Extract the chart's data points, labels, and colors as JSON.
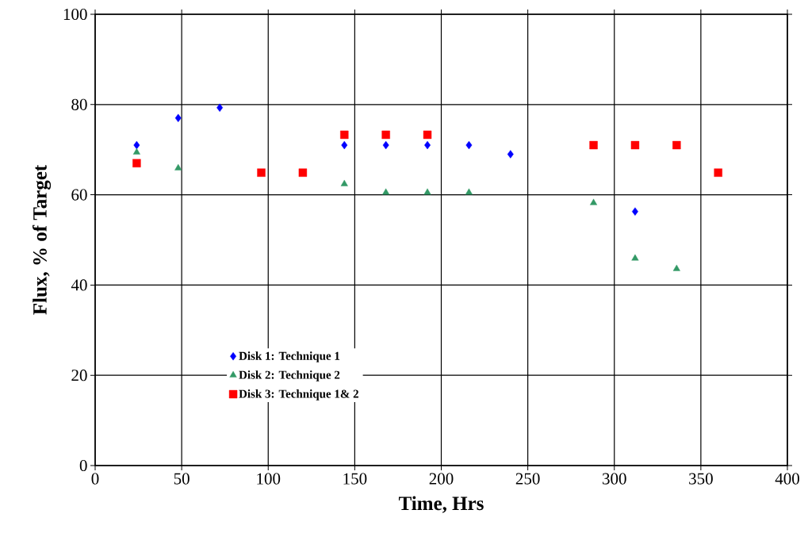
{
  "chart_data": {
    "type": "scatter",
    "xlabel": "Time, Hrs",
    "ylabel": "Flux, % of Target",
    "xlim": [
      0,
      400
    ],
    "xticks": [
      0,
      50,
      100,
      150,
      200,
      250,
      300,
      350,
      400
    ],
    "ylim": [
      0,
      100
    ],
    "yticks": [
      0,
      20,
      40,
      60,
      80,
      100
    ],
    "grid": true,
    "legend": "bottom left",
    "series": [
      {
        "name": "Disk 1:  Technique 1",
        "color": "#0000ff",
        "marker": "diamond",
        "x": [
          24,
          48,
          72,
          144,
          168,
          192,
          216,
          240,
          312
        ],
        "values": [
          71,
          77,
          79.3,
          71,
          71,
          71,
          71,
          69,
          56.3
        ]
      },
      {
        "name": "Disk 2:  Technique 2",
        "color": "#339966",
        "marker": "triangle",
        "x": [
          24,
          48,
          144,
          168,
          192,
          216,
          288,
          312,
          336
        ],
        "values": [
          69.4,
          65.9,
          62.4,
          60.5,
          60.5,
          60.5,
          58.2,
          45.9,
          43.6
        ]
      },
      {
        "name": "Disk 3: Technique 1& 2",
        "color": "#ff0000",
        "marker": "square",
        "x": [
          24,
          96,
          120,
          144,
          168,
          192,
          288,
          312,
          336,
          360
        ],
        "values": [
          67,
          64.9,
          64.9,
          73.3,
          73.3,
          73.3,
          71,
          71,
          71,
          64.9
        ]
      }
    ]
  }
}
